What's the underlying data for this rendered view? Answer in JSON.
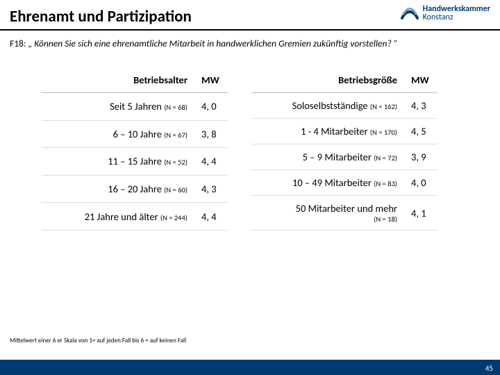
{
  "header": {
    "title": "Ehrenamt und Partizipation",
    "logo_line1": "Handwerkskammer",
    "logo_line2": "Konstanz",
    "logo_color": "#003a70"
  },
  "question": {
    "code": "F18:",
    "text": "„ Können Sie sich eine ehrenamtliche Mitarbeit in handwerklichen Gremien zukünftig vorstellen? ”"
  },
  "table_left": {
    "header_label": "Betriebsalter",
    "header_value": "MW",
    "rows": [
      {
        "label": "Seit 5 Jahren",
        "n": "(N = 68)",
        "value": "4, 0"
      },
      {
        "label": "6 – 10 Jahre",
        "n": "(N = 67)",
        "value": "3, 8"
      },
      {
        "label": "11 – 15 Jahre",
        "n": "(N = 52)",
        "value": "4, 4"
      },
      {
        "label": "16 – 20 Jahre",
        "n": "(N = 60)",
        "value": "4, 3"
      },
      {
        "label": "21 Jahre und älter",
        "n": "(N = 244)",
        "value": "4, 4"
      }
    ]
  },
  "table_right": {
    "header_label": "Betriebsgröße",
    "header_value": "MW",
    "rows": [
      {
        "label": "Soloselbstständige",
        "n": "(N = 162)",
        "value": "4, 3"
      },
      {
        "label": "1 - 4 Mitarbeiter",
        "n": "(N = 170)",
        "value": "4, 5"
      },
      {
        "label": "5 – 9 Mitarbeiter",
        "n": "(N = 72)",
        "value": "3, 9"
      },
      {
        "label": "10 – 49 Mitarbeiter",
        "n": "(N = 83)",
        "value": "4, 0"
      },
      {
        "label": "50 Mitarbeiter und mehr",
        "n": "(N = 18)",
        "value": "4, 1",
        "n_below": true
      }
    ]
  },
  "footnote": "Mittelwert einer 6 er Skala von 1= auf jeden Fall bis 6 = auf keinen Fall",
  "page_number": "45",
  "colors": {
    "footer_bar": "#003a70"
  }
}
